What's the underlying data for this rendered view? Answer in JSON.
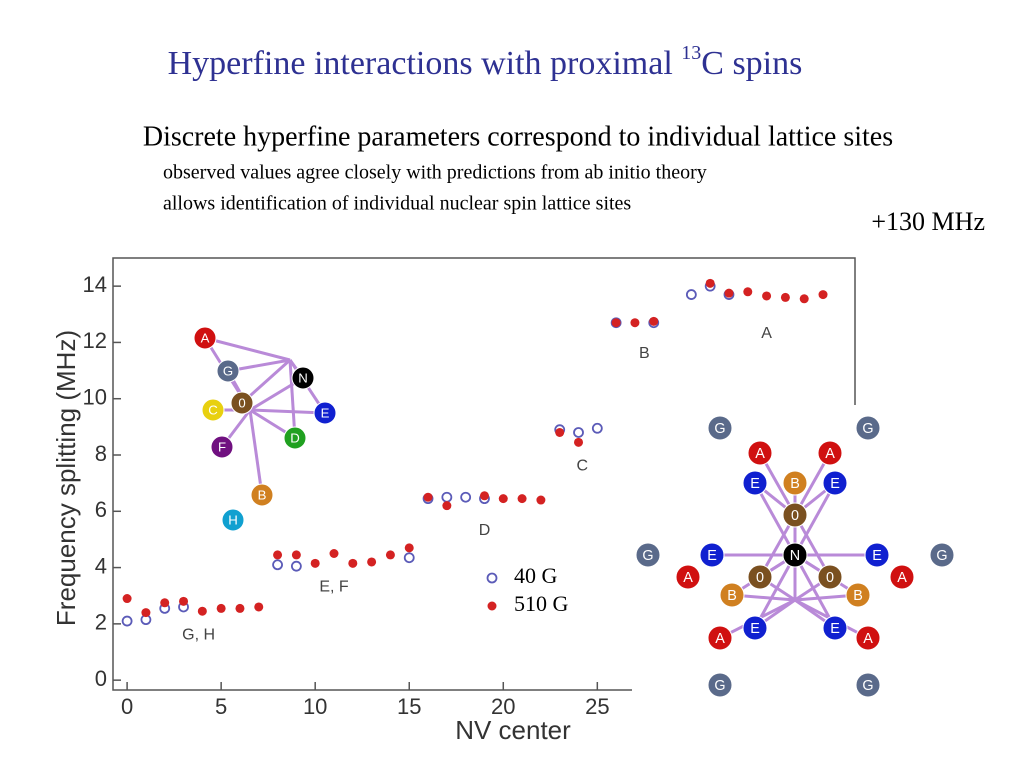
{
  "slide": {
    "title": {
      "text": "Hyperfine interactions with proximal ",
      "sup": "13",
      "rest": "C spins"
    },
    "heading": "Discrete hyperfine parameters correspond to individual lattice sites",
    "bullets": [
      "observed values agree closely with predictions from ab initio theory",
      "allows identification of individual nuclear spin lattice sites"
    ],
    "note": "+130 MHz",
    "lattice_left": [
      "A",
      "G",
      "N",
      "C",
      "0",
      "E",
      "F",
      "D",
      "B",
      "H"
    ],
    "lattice_right": [
      "G",
      "G",
      "A",
      "A",
      "E",
      "B",
      "E",
      "0",
      "G",
      "E",
      "N",
      "E",
      "G",
      "A",
      "0",
      "0",
      "A",
      "B",
      "B",
      "A",
      "E",
      "E",
      "A",
      "G",
      "G"
    ]
  },
  "chart_data": {
    "type": "scatter",
    "xlabel": "NV center",
    "ylabel": "Frequency splitting (MHz)",
    "xlim": [
      -0.75,
      38.7
    ],
    "ylim": [
      -0.35,
      15
    ],
    "xticks": [
      0,
      5,
      10,
      15,
      20,
      25
    ],
    "yticks": [
      0,
      2,
      4,
      6,
      8,
      10,
      12,
      14
    ],
    "annotations": [
      "G, H",
      "E, F",
      "D",
      "C",
      "B",
      "A"
    ],
    "series": [
      {
        "name": "40 G",
        "color": "#5b5bb8",
        "marker": "open",
        "x": [
          0,
          1,
          2,
          3,
          8,
          9,
          15,
          16,
          17,
          18,
          19,
          23,
          24,
          25,
          26,
          28,
          30,
          31,
          32
        ],
        "values": [
          2.1,
          2.15,
          2.55,
          2.6,
          4.1,
          4.05,
          4.35,
          6.45,
          6.5,
          6.5,
          6.45,
          8.9,
          8.8,
          8.95,
          12.7,
          12.7,
          13.7,
          14.0,
          13.7
        ]
      },
      {
        "name": "510 G",
        "color": "#d42222",
        "marker": "filled",
        "x": [
          0,
          1,
          2,
          3,
          4,
          5,
          6,
          7,
          8,
          9,
          10,
          11,
          12,
          13,
          14,
          15,
          16,
          17,
          19,
          20,
          21,
          22,
          23,
          24,
          26,
          27,
          28,
          31,
          32,
          33,
          34,
          35,
          36,
          37
        ],
        "values": [
          2.9,
          2.4,
          2.75,
          2.8,
          2.45,
          2.55,
          2.55,
          2.6,
          4.45,
          4.45,
          4.15,
          4.5,
          4.15,
          4.2,
          4.45,
          4.7,
          6.5,
          6.2,
          6.55,
          6.45,
          6.45,
          6.4,
          8.8,
          8.45,
          12.7,
          12.7,
          12.75,
          14.1,
          13.75,
          13.8,
          13.65,
          13.6,
          13.55,
          13.7
        ]
      }
    ]
  }
}
